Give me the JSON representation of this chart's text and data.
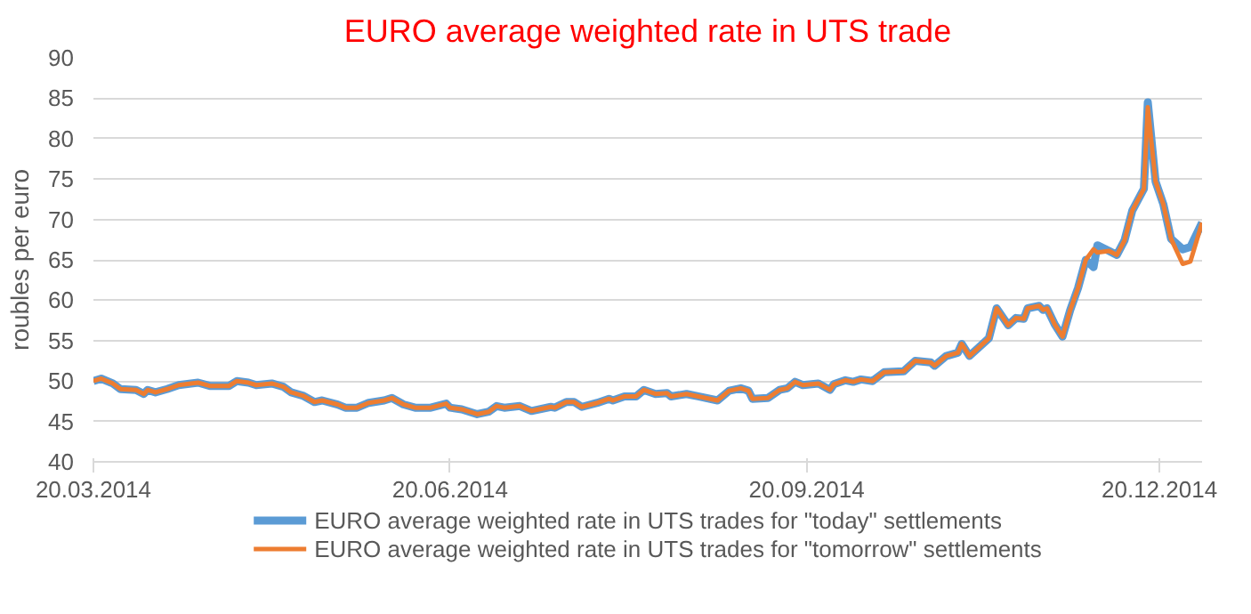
{
  "chart_data": {
    "type": "line",
    "title": "EURO average weighted rate in UTS trade",
    "ylabel": "roubles per euro",
    "x": [
      "2014-03-20",
      "2014-03-22",
      "2014-03-25",
      "2014-03-27",
      "2014-03-31",
      "2014-04-02",
      "2014-04-03",
      "2014-04-05",
      "2014-04-08",
      "2014-04-11",
      "2014-04-16",
      "2014-04-19",
      "2014-04-24",
      "2014-04-26",
      "2014-04-29",
      "2014-05-01",
      "2014-05-05",
      "2014-05-08",
      "2014-05-10",
      "2014-05-13",
      "2014-05-16",
      "2014-05-18",
      "2014-05-22",
      "2014-05-24",
      "2014-05-27",
      "2014-05-30",
      "2014-06-03",
      "2014-06-05",
      "2014-06-08",
      "2014-06-11",
      "2014-06-15",
      "2014-06-19",
      "2014-06-20",
      "2014-06-23",
      "2014-06-27",
      "2014-06-30",
      "2014-07-02",
      "2014-07-04",
      "2014-07-08",
      "2014-07-11",
      "2014-07-16",
      "2014-07-17",
      "2014-07-20",
      "2014-07-22",
      "2014-07-24",
      "2014-07-28",
      "2014-07-31",
      "2014-08-01",
      "2014-08-04",
      "2014-08-07",
      "2014-08-09",
      "2014-08-12",
      "2014-08-15",
      "2014-08-16",
      "2014-08-20",
      "2014-08-23",
      "2014-08-28",
      "2014-08-31",
      "2014-09-03",
      "2014-09-05",
      "2014-09-06",
      "2014-09-10",
      "2014-09-13",
      "2014-09-15",
      "2014-09-17",
      "2014-09-19",
      "2014-09-23",
      "2014-09-26",
      "2014-09-27",
      "2014-09-30",
      "2014-10-02",
      "2014-10-04",
      "2014-10-07",
      "2014-10-10",
      "2014-10-15",
      "2014-10-18",
      "2014-10-22",
      "2014-10-23",
      "2014-10-26",
      "2014-10-29",
      "2014-10-30",
      "2014-11-01",
      "2014-11-06",
      "2014-11-08",
      "2014-11-11",
      "2014-11-13",
      "2014-11-15",
      "2014-11-16",
      "2014-11-19",
      "2014-11-20",
      "2014-11-21",
      "2014-11-23",
      "2014-11-25",
      "2014-11-27",
      "2014-11-29",
      "2014-12-01",
      "2014-12-03",
      "2014-12-04",
      "2014-12-07",
      "2014-12-09",
      "2014-12-11",
      "2014-12-13",
      "2014-12-16",
      "2014-12-17",
      "2014-12-19",
      "2014-12-21",
      "2014-12-23",
      "2014-12-26",
      "2014-12-28",
      "2014-12-31"
    ],
    "series": [
      {
        "name": "EURO average weighted rate in UTS trades for \"today\" settlements",
        "color": "#5b9bd5",
        "values": [
          50.0,
          50.3,
          49.7,
          49.0,
          48.9,
          48.4,
          48.9,
          48.6,
          49.0,
          49.5,
          49.8,
          49.4,
          49.4,
          50.0,
          49.8,
          49.5,
          49.7,
          49.3,
          48.6,
          48.2,
          47.4,
          47.6,
          47.1,
          46.7,
          46.7,
          47.3,
          47.6,
          47.9,
          47.1,
          46.7,
          46.7,
          47.2,
          46.7,
          46.5,
          45.9,
          46.2,
          46.9,
          46.7,
          46.9,
          46.3,
          46.8,
          46.7,
          47.4,
          47.4,
          46.8,
          47.3,
          47.8,
          47.6,
          48.1,
          48.1,
          48.9,
          48.4,
          48.5,
          48.1,
          48.4,
          48.1,
          47.6,
          48.8,
          49.1,
          48.8,
          47.8,
          47.9,
          48.9,
          49.1,
          49.9,
          49.5,
          49.7,
          48.9,
          49.6,
          50.1,
          49.9,
          50.2,
          50.0,
          51.1,
          51.2,
          52.5,
          52.3,
          51.9,
          53.1,
          53.5,
          54.6,
          53.1,
          55.3,
          59.0,
          56.9,
          57.8,
          57.7,
          59.0,
          59.3,
          58.8,
          59.0,
          57.0,
          55.5,
          58.8,
          61.5,
          65.0,
          64.1,
          66.8,
          66.1,
          65.6,
          67.4,
          71.1,
          73.8,
          84.5,
          74.7,
          71.9,
          67.6,
          66.3,
          66.6,
          69.6
        ]
      },
      {
        "name": "EURO average weighted rate in UTS trades for \"tomorrow\" settlements",
        "color": "#ed7d31",
        "values": [
          50.0,
          50.3,
          49.7,
          49.0,
          48.9,
          48.4,
          48.9,
          48.6,
          49.0,
          49.5,
          49.8,
          49.4,
          49.4,
          50.0,
          49.8,
          49.5,
          49.7,
          49.3,
          48.6,
          48.2,
          47.4,
          47.6,
          47.1,
          46.7,
          46.7,
          47.3,
          47.6,
          47.9,
          47.1,
          46.7,
          46.7,
          47.2,
          46.7,
          46.5,
          45.9,
          46.2,
          46.9,
          46.7,
          46.9,
          46.3,
          46.8,
          46.7,
          47.4,
          47.4,
          46.8,
          47.3,
          47.8,
          47.6,
          48.1,
          48.1,
          48.9,
          48.4,
          48.5,
          48.1,
          48.4,
          48.1,
          47.6,
          48.8,
          49.1,
          48.8,
          47.8,
          47.9,
          48.9,
          49.1,
          49.9,
          49.5,
          49.7,
          48.9,
          49.6,
          50.1,
          49.9,
          50.2,
          50.0,
          51.1,
          51.2,
          52.5,
          52.3,
          51.9,
          53.1,
          53.5,
          54.6,
          53.1,
          55.3,
          59.0,
          56.9,
          57.8,
          57.7,
          59.0,
          59.3,
          58.8,
          59.0,
          57.0,
          55.5,
          58.8,
          61.5,
          65.0,
          66.3,
          65.9,
          66.1,
          65.6,
          67.4,
          71.1,
          73.8,
          83.9,
          74.7,
          71.9,
          67.6,
          64.5,
          64.8,
          69.6
        ]
      }
    ],
    "xlim": [
      "2014-03-20",
      "2014-12-31"
    ],
    "xticks": [
      {
        "value": "2014-03-20",
        "label": "20.03.2014"
      },
      {
        "value": "2014-06-20",
        "label": "20.06.2014"
      },
      {
        "value": "2014-09-20",
        "label": "20.09.2014"
      },
      {
        "value": "2014-12-20",
        "label": "20.12.2014"
      }
    ],
    "ylim": [
      40,
      90
    ],
    "yticks": [
      40,
      45,
      50,
      55,
      60,
      65,
      70,
      75,
      80,
      85,
      90
    ],
    "grid": "y",
    "legend": "bottom",
    "marker": "none",
    "line_style": "solid"
  }
}
